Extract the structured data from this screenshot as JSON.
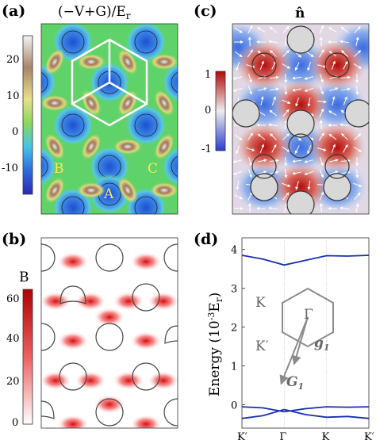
{
  "panels": {
    "a": {
      "label": "(a)",
      "title": "(−V+G)/E",
      "title_sub": "r",
      "colorbar_ticks": [
        "20",
        "10",
        "0",
        "-10"
      ],
      "site_labels": [
        "B",
        "C",
        "A"
      ]
    },
    "b": {
      "label": "(b)",
      "colorbar_title": "B",
      "colorbar_ticks": [
        "60",
        "40",
        "20",
        "0"
      ]
    },
    "c": {
      "label": "(c)",
      "title": "n̂",
      "colorbar_ticks": [
        "1",
        "0",
        "-1"
      ]
    },
    "d": {
      "label": "(d)",
      "chart_data": {
        "type": "line",
        "ylabel_main": "Energy (10",
        "ylabel_exp": "-3",
        "ylabel_end": "E",
        "ylabel_sub": "r",
        "ylabel_close": ")",
        "y_ticks": [
          "4",
          "3",
          "2",
          "1",
          "0"
        ],
        "x_ticks": [
          "K′",
          "Γ",
          "K",
          "K′"
        ],
        "ylim": [
          -0.6,
          4.3
        ],
        "series": [
          {
            "x": [
              0,
              0.5,
              1,
              1.5,
              2,
              2.5,
              3
            ],
            "y": [
              3.85,
              3.75,
              3.6,
              3.72,
              3.84,
              3.83,
              3.85
            ]
          },
          {
            "x": [
              0,
              0.5,
              1,
              1.5,
              2,
              2.5,
              3
            ],
            "y": [
              -0.05,
              -0.08,
              -0.18,
              -0.1,
              -0.05,
              -0.06,
              -0.05
            ]
          },
          {
            "x": [
              0,
              0.5,
              1,
              1.5,
              2,
              2.5,
              3
            ],
            "y": [
              -0.35,
              -0.28,
              -0.12,
              -0.25,
              -0.32,
              -0.3,
              -0.35
            ]
          }
        ],
        "inset": {
          "K": "K",
          "Kp": "K′",
          "Gamma": "Γ",
          "g1": "g",
          "g1_sub": "1",
          "G1": "G",
          "G1_sub": "1"
        }
      }
    }
  },
  "colors": {
    "band": "#1a2fb0",
    "inset": "#8c8c8c"
  }
}
